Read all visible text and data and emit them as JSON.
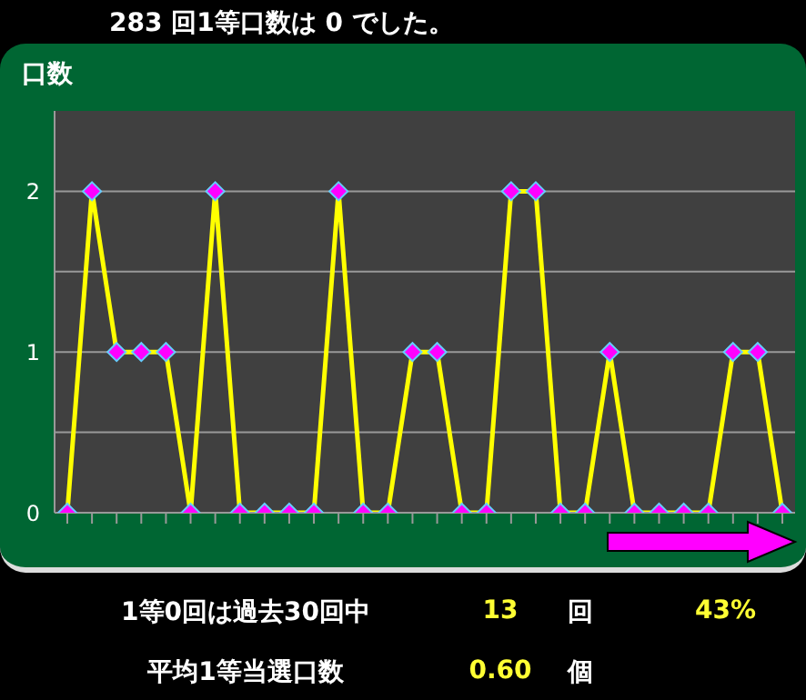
{
  "chart_data": {
    "type": "line",
    "title": "283 回1等口数は 0 でした。",
    "ylabel": "口数",
    "categories": [
      null,
      null,
      null,
      null,
      null,
      null,
      null,
      null,
      null,
      null,
      null,
      null,
      null,
      null,
      null,
      null,
      null,
      null,
      null,
      null,
      null,
      null,
      null,
      null,
      null,
      null,
      null,
      null,
      null,
      null
    ],
    "series": [
      {
        "color": "#ffff00",
        "values": [
          0,
          2,
          1,
          1,
          1,
          0,
          2,
          0,
          0,
          0,
          0,
          2,
          0,
          0,
          1,
          1,
          0,
          0,
          2,
          2,
          0,
          0,
          1,
          0,
          0,
          0,
          0,
          1,
          1,
          0
        ]
      }
    ],
    "ylim": [
      0,
      2.5
    ],
    "yticks": [
      0,
      {
        "value": 0.5,
        "label": null
      },
      1,
      {
        "value": 1.5,
        "label": null
      },
      2
    ],
    "grid": "y",
    "marker": "diamond",
    "line_style": "solid",
    "tick_labels": "y",
    "annotations": [
      "1等0回は過去30回中",
      "13",
      "回",
      "43%",
      "平均1等当選口数",
      "0.60",
      "個"
    ]
  }
}
